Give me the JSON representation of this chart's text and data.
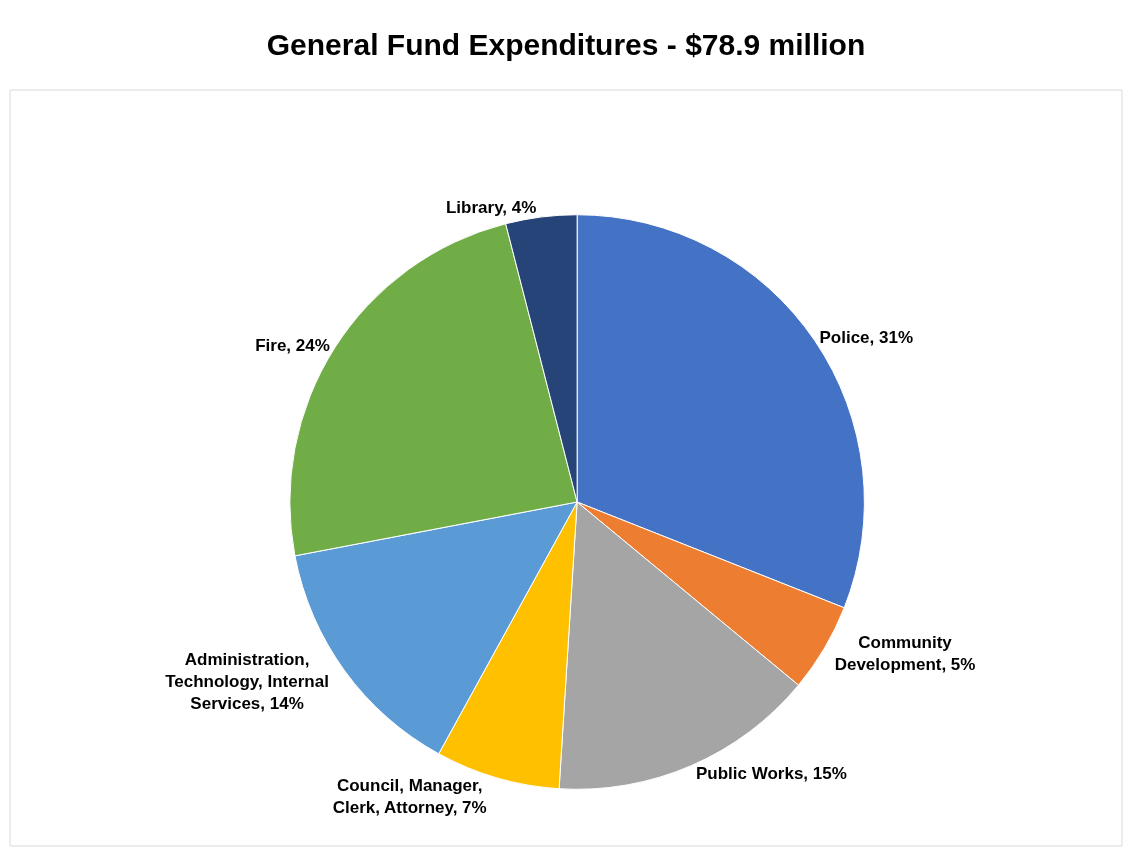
{
  "chart_data": {
    "type": "pie",
    "title": "General Fund Expenditures - $78.9 million",
    "categories": [
      "Police",
      "Community Development",
      "Public Works",
      "Council, Manager, Clerk, Attorney",
      "Administration, Technology, Internal Services",
      "Fire",
      "Library"
    ],
    "values": [
      31,
      5,
      15,
      7,
      14,
      24,
      4
    ],
    "value_labels": [
      "31%",
      "5%",
      "15%",
      "7%",
      "14%",
      "24%",
      "4%"
    ],
    "colors": [
      "#4472c4",
      "#ed7d31",
      "#a5a5a5",
      "#ffc000",
      "#5b9bd5",
      "#70ad47",
      "#264478"
    ],
    "legend": false
  }
}
